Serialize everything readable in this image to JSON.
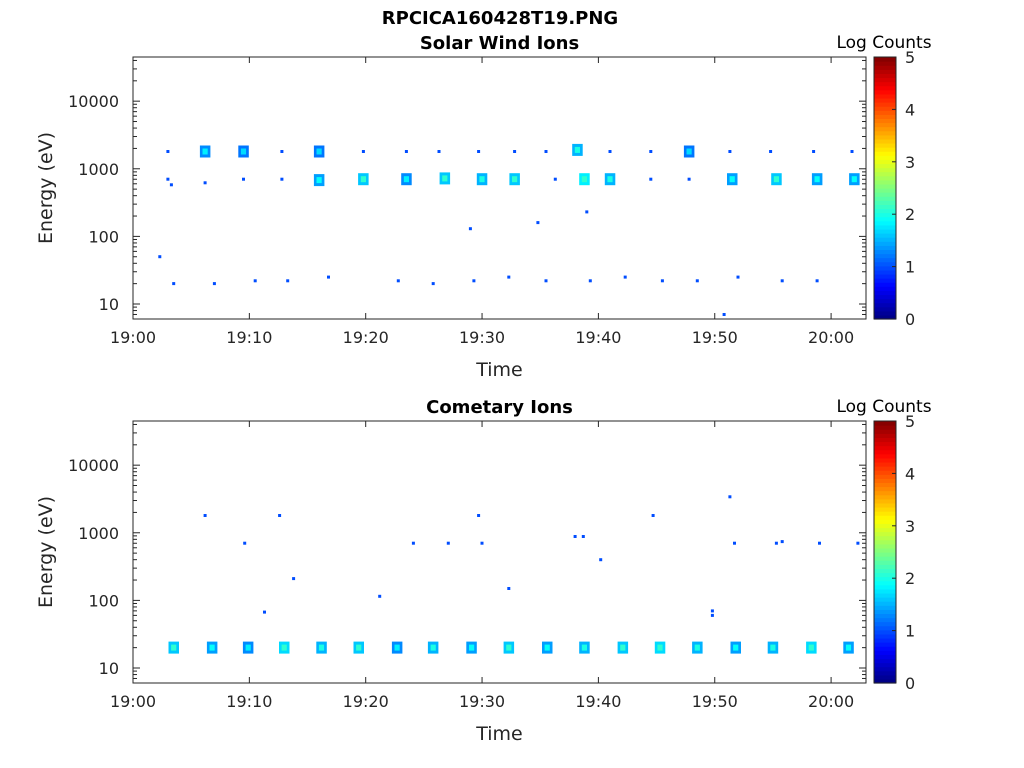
{
  "figure_title": "RPCICA160428T19.PNG",
  "chart_data": [
    {
      "type": "heatmap",
      "title": "Solar Wind Ions",
      "xlabel": "Time",
      "ylabel": "Energy (eV)",
      "x_ticks": [
        "19:00",
        "19:10",
        "19:20",
        "19:30",
        "19:40",
        "19:50",
        "20:00"
      ],
      "xlim": [
        "19:00",
        "20:03"
      ],
      "y_scale": "log",
      "y_ticks": [
        "10",
        "100",
        "1000",
        "10000"
      ],
      "ylim": [
        6,
        45000
      ],
      "colorbar": {
        "label": "Log Counts",
        "range": [
          0,
          5
        ],
        "ticks": [
          "0",
          "1",
          "2",
          "3",
          "4",
          "5"
        ],
        "colormap": "jet"
      },
      "points": [
        {
          "t": 3.0,
          "e": 1800,
          "v": 1.0
        },
        {
          "t": 3.0,
          "e": 700,
          "v": 1.0
        },
        {
          "t": 3.3,
          "e": 580,
          "v": 1.0
        },
        {
          "t": 6.2,
          "e": 1800,
          "v": 1.3
        },
        {
          "t": 6.2,
          "e": 620,
          "v": 1.0
        },
        {
          "t": 9.5,
          "e": 1800,
          "v": 1.2
        },
        {
          "t": 9.5,
          "e": 700,
          "v": 1.0
        },
        {
          "t": 12.8,
          "e": 1800,
          "v": 1.0
        },
        {
          "t": 12.8,
          "e": 700,
          "v": 1.0
        },
        {
          "t": 16.0,
          "e": 1800,
          "v": 1.2
        },
        {
          "t": 16.0,
          "e": 680,
          "v": 1.4
        },
        {
          "t": 19.8,
          "e": 1800,
          "v": 1.0
        },
        {
          "t": 19.8,
          "e": 700,
          "v": 1.6
        },
        {
          "t": 23.5,
          "e": 1800,
          "v": 1.0
        },
        {
          "t": 23.5,
          "e": 700,
          "v": 1.3
        },
        {
          "t": 26.3,
          "e": 1800,
          "v": 1.0
        },
        {
          "t": 26.8,
          "e": 720,
          "v": 1.6
        },
        {
          "t": 29.7,
          "e": 1800,
          "v": 1.0
        },
        {
          "t": 30.0,
          "e": 700,
          "v": 1.5
        },
        {
          "t": 32.8,
          "e": 1800,
          "v": 1.0
        },
        {
          "t": 32.8,
          "e": 700,
          "v": 1.6
        },
        {
          "t": 35.5,
          "e": 1800,
          "v": 1.0
        },
        {
          "t": 36.3,
          "e": 700,
          "v": 1.0
        },
        {
          "t": 38.2,
          "e": 1900,
          "v": 1.5
        },
        {
          "t": 38.8,
          "e": 700,
          "v": 1.8
        },
        {
          "t": 41.0,
          "e": 1800,
          "v": 1.0
        },
        {
          "t": 41.0,
          "e": 700,
          "v": 1.5
        },
        {
          "t": 44.5,
          "e": 1800,
          "v": 1.0
        },
        {
          "t": 44.5,
          "e": 700,
          "v": 1.0
        },
        {
          "t": 47.8,
          "e": 1800,
          "v": 1.2
        },
        {
          "t": 47.8,
          "e": 700,
          "v": 1.0
        },
        {
          "t": 51.3,
          "e": 1800,
          "v": 1.0
        },
        {
          "t": 51.5,
          "e": 700,
          "v": 1.4
        },
        {
          "t": 54.8,
          "e": 1800,
          "v": 1.0
        },
        {
          "t": 55.3,
          "e": 700,
          "v": 1.6
        },
        {
          "t": 58.5,
          "e": 1800,
          "v": 1.0
        },
        {
          "t": 58.8,
          "e": 700,
          "v": 1.4
        },
        {
          "t": 61.8,
          "e": 1800,
          "v": 1.0
        },
        {
          "t": 62.0,
          "e": 700,
          "v": 1.4
        },
        {
          "t": 2.3,
          "e": 50,
          "v": 1.0
        },
        {
          "t": 3.5,
          "e": 20,
          "v": 1.0
        },
        {
          "t": 7.0,
          "e": 20,
          "v": 1.0
        },
        {
          "t": 10.5,
          "e": 22,
          "v": 1.0
        },
        {
          "t": 13.3,
          "e": 22,
          "v": 1.0
        },
        {
          "t": 16.8,
          "e": 25,
          "v": 1.0
        },
        {
          "t": 22.8,
          "e": 22,
          "v": 1.0
        },
        {
          "t": 25.8,
          "e": 20,
          "v": 1.0
        },
        {
          "t": 29.3,
          "e": 22,
          "v": 1.0
        },
        {
          "t": 32.3,
          "e": 25,
          "v": 1.0
        },
        {
          "t": 35.5,
          "e": 22,
          "v": 1.0
        },
        {
          "t": 39.3,
          "e": 22,
          "v": 1.0
        },
        {
          "t": 42.3,
          "e": 25,
          "v": 1.0
        },
        {
          "t": 45.5,
          "e": 22,
          "v": 1.0
        },
        {
          "t": 48.5,
          "e": 22,
          "v": 1.0
        },
        {
          "t": 52.0,
          "e": 25,
          "v": 1.0
        },
        {
          "t": 55.8,
          "e": 22,
          "v": 1.0
        },
        {
          "t": 58.8,
          "e": 22,
          "v": 1.0
        },
        {
          "t": 29.0,
          "e": 130,
          "v": 1.0
        },
        {
          "t": 34.8,
          "e": 160,
          "v": 1.0
        },
        {
          "t": 39.0,
          "e": 230,
          "v": 1.0
        },
        {
          "t": 50.8,
          "e": 7,
          "v": 1.0
        }
      ]
    },
    {
      "type": "heatmap",
      "title": "Cometary Ions",
      "xlabel": "Time",
      "ylabel": "Energy (eV)",
      "x_ticks": [
        "19:00",
        "19:10",
        "19:20",
        "19:30",
        "19:40",
        "19:50",
        "20:00"
      ],
      "xlim": [
        "19:00",
        "20:03"
      ],
      "y_scale": "log",
      "y_ticks": [
        "10",
        "100",
        "1000",
        "10000"
      ],
      "ylim": [
        6,
        45000
      ],
      "colorbar": {
        "label": "Log Counts",
        "range": [
          0,
          5
        ],
        "ticks": [
          "0",
          "1",
          "2",
          "3",
          "4",
          "5"
        ],
        "colormap": "jet"
      },
      "points": [
        {
          "t": 3.5,
          "e": 20,
          "v": 1.6
        },
        {
          "t": 6.8,
          "e": 20,
          "v": 1.4
        },
        {
          "t": 9.9,
          "e": 20,
          "v": 1.3
        },
        {
          "t": 13.0,
          "e": 20,
          "v": 1.7
        },
        {
          "t": 16.2,
          "e": 20,
          "v": 1.5
        },
        {
          "t": 19.4,
          "e": 20,
          "v": 1.6
        },
        {
          "t": 22.7,
          "e": 20,
          "v": 1.3
        },
        {
          "t": 25.8,
          "e": 20,
          "v": 1.5
        },
        {
          "t": 29.1,
          "e": 20,
          "v": 1.4
        },
        {
          "t": 32.3,
          "e": 20,
          "v": 1.6
        },
        {
          "t": 35.6,
          "e": 20,
          "v": 1.4
        },
        {
          "t": 38.8,
          "e": 20,
          "v": 1.5
        },
        {
          "t": 42.1,
          "e": 20,
          "v": 1.6
        },
        {
          "t": 45.3,
          "e": 20,
          "v": 1.7
        },
        {
          "t": 48.5,
          "e": 20,
          "v": 1.5
        },
        {
          "t": 51.8,
          "e": 20,
          "v": 1.4
        },
        {
          "t": 55.0,
          "e": 20,
          "v": 1.5
        },
        {
          "t": 58.3,
          "e": 20,
          "v": 1.7
        },
        {
          "t": 61.5,
          "e": 20,
          "v": 1.4
        },
        {
          "t": 6.2,
          "e": 1800,
          "v": 1.0
        },
        {
          "t": 9.6,
          "e": 700,
          "v": 1.0
        },
        {
          "t": 12.6,
          "e": 1800,
          "v": 1.0
        },
        {
          "t": 13.8,
          "e": 210,
          "v": 1.0
        },
        {
          "t": 11.3,
          "e": 67,
          "v": 1.0
        },
        {
          "t": 21.2,
          "e": 115,
          "v": 1.0
        },
        {
          "t": 24.1,
          "e": 700,
          "v": 1.0
        },
        {
          "t": 27.1,
          "e": 700,
          "v": 1.0
        },
        {
          "t": 29.7,
          "e": 1800,
          "v": 1.0
        },
        {
          "t": 30.0,
          "e": 700,
          "v": 1.0
        },
        {
          "t": 32.3,
          "e": 150,
          "v": 1.0
        },
        {
          "t": 38.0,
          "e": 880,
          "v": 1.0
        },
        {
          "t": 38.7,
          "e": 880,
          "v": 1.0
        },
        {
          "t": 40.2,
          "e": 400,
          "v": 1.0
        },
        {
          "t": 44.7,
          "e": 1800,
          "v": 1.0
        },
        {
          "t": 49.8,
          "e": 70,
          "v": 1.0
        },
        {
          "t": 49.8,
          "e": 60,
          "v": 1.0
        },
        {
          "t": 51.3,
          "e": 3400,
          "v": 1.0
        },
        {
          "t": 51.7,
          "e": 700,
          "v": 1.0
        },
        {
          "t": 55.3,
          "e": 700,
          "v": 1.0
        },
        {
          "t": 55.8,
          "e": 740,
          "v": 1.0
        },
        {
          "t": 59.0,
          "e": 700,
          "v": 1.0
        },
        {
          "t": 62.3,
          "e": 700,
          "v": 1.0
        }
      ]
    }
  ]
}
